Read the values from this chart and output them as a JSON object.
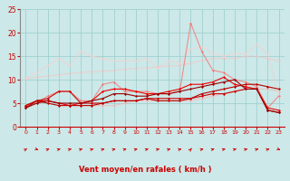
{
  "background_color": "#cce8e8",
  "grid_color": "#99cccc",
  "xlabel": "Vent moyen/en rafales ( km/h )",
  "xlabel_color": "#cc0000",
  "tick_color": "#cc0000",
  "xlim": [
    -0.5,
    23.5
  ],
  "ylim": [
    0,
    25
  ],
  "yticks": [
    0,
    5,
    10,
    15,
    20,
    25
  ],
  "xticks": [
    0,
    1,
    2,
    3,
    4,
    5,
    6,
    7,
    8,
    9,
    10,
    11,
    12,
    13,
    14,
    15,
    16,
    17,
    18,
    19,
    20,
    21,
    22,
    23
  ],
  "series": [
    {
      "x": [
        0,
        1,
        2,
        3,
        4,
        5,
        6,
        7,
        8,
        9,
        10,
        11,
        12,
        13,
        14,
        15,
        16,
        17,
        18,
        19,
        20,
        21,
        22,
        23
      ],
      "y": [
        4.0,
        5.5,
        5.5,
        5.0,
        4.5,
        4.5,
        4.5,
        4.5,
        4.5,
        5.0,
        5.5,
        5.5,
        5.5,
        5.5,
        5.5,
        5.5,
        6.0,
        6.5,
        7.0,
        7.5,
        8.0,
        8.0,
        8.0,
        7.5
      ],
      "color": "#ffaaaa",
      "alpha": 0.6,
      "lw": 0.8,
      "marker": "D",
      "ms": 1.5
    },
    {
      "x": [
        0,
        1,
        2,
        3,
        4,
        5,
        6,
        7,
        8,
        9,
        10,
        11,
        12,
        13,
        14,
        15,
        16,
        17,
        18,
        19,
        20,
        21,
        22,
        23
      ],
      "y": [
        10.2,
        10.5,
        10.8,
        11.0,
        11.3,
        11.5,
        11.7,
        11.8,
        12.0,
        12.2,
        12.4,
        12.5,
        12.7,
        12.9,
        13.0,
        13.5,
        14.0,
        14.5,
        14.5,
        14.5,
        15.0,
        15.0,
        14.5,
        14.0
      ],
      "color": "#ffbbbb",
      "alpha": 0.5,
      "lw": 0.8,
      "marker": "D",
      "ms": 1.5
    },
    {
      "x": [
        0,
        1,
        2,
        3,
        4,
        5,
        6,
        7,
        8,
        9,
        10,
        11,
        12,
        13,
        14,
        15,
        16,
        17,
        18,
        19,
        20,
        21,
        22,
        23
      ],
      "y": [
        10.2,
        11.5,
        13.0,
        14.5,
        13.0,
        16.0,
        15.0,
        14.5,
        14.0,
        14.0,
        14.0,
        14.5,
        12.5,
        14.0,
        13.5,
        16.5,
        17.0,
        15.5,
        15.0,
        15.5,
        15.5,
        17.5,
        15.5,
        6.5
      ],
      "color": "#ffcccc",
      "alpha": 0.6,
      "lw": 0.8,
      "marker": "D",
      "ms": 1.5
    },
    {
      "x": [
        0,
        1,
        2,
        3,
        4,
        5,
        6,
        7,
        8,
        9,
        10,
        11,
        12,
        13,
        14,
        15,
        16,
        17,
        18,
        19,
        20,
        21,
        22,
        23
      ],
      "y": [
        4.5,
        5.0,
        6.5,
        7.5,
        7.5,
        5.5,
        5.5,
        9.0,
        9.5,
        7.5,
        7.5,
        7.5,
        7.0,
        7.0,
        7.5,
        22.0,
        16.0,
        12.0,
        11.5,
        10.0,
        9.5,
        8.5,
        4.0,
        6.5
      ],
      "color": "#ff6666",
      "alpha": 0.7,
      "lw": 0.8,
      "marker": "D",
      "ms": 1.5
    },
    {
      "x": [
        0,
        1,
        2,
        3,
        4,
        5,
        6,
        7,
        8,
        9,
        10,
        11,
        12,
        13,
        14,
        15,
        16,
        17,
        18,
        19,
        20,
        21,
        22,
        23
      ],
      "y": [
        4.5,
        5.5,
        5.5,
        5.0,
        4.5,
        5.0,
        5.5,
        7.5,
        8.0,
        8.0,
        7.5,
        7.0,
        7.0,
        7.5,
        8.0,
        9.0,
        9.0,
        9.5,
        10.5,
        9.0,
        8.5,
        8.0,
        4.0,
        3.5
      ],
      "color": "#ee0000",
      "alpha": 1.0,
      "lw": 0.8,
      "marker": "D",
      "ms": 1.5
    },
    {
      "x": [
        0,
        1,
        2,
        3,
        4,
        5,
        6,
        7,
        8,
        9,
        10,
        11,
        12,
        13,
        14,
        15,
        16,
        17,
        18,
        19,
        20,
        21,
        22,
        23
      ],
      "y": [
        4.5,
        5.5,
        6.0,
        7.5,
        7.5,
        5.0,
        5.0,
        5.0,
        5.5,
        5.5,
        5.5,
        6.0,
        6.0,
        6.0,
        6.0,
        6.0,
        6.5,
        7.0,
        7.0,
        7.5,
        8.0,
        8.0,
        3.5,
        3.0
      ],
      "color": "#cc0000",
      "alpha": 1.0,
      "lw": 0.8,
      "marker": "D",
      "ms": 1.5
    },
    {
      "x": [
        0,
        1,
        2,
        3,
        4,
        5,
        6,
        7,
        8,
        9,
        10,
        11,
        12,
        13,
        14,
        15,
        16,
        17,
        18,
        19,
        20,
        21,
        22,
        23
      ],
      "y": [
        4.0,
        5.5,
        5.0,
        4.5,
        4.5,
        4.5,
        4.5,
        5.0,
        5.5,
        5.5,
        5.5,
        6.0,
        5.5,
        5.5,
        5.5,
        6.0,
        7.0,
        7.5,
        8.0,
        8.5,
        9.0,
        9.0,
        8.5,
        8.0
      ],
      "color": "#bb0000",
      "alpha": 1.0,
      "lw": 0.8,
      "marker": "D",
      "ms": 1.5
    },
    {
      "x": [
        0,
        1,
        2,
        3,
        4,
        5,
        6,
        7,
        8,
        9,
        10,
        11,
        12,
        13,
        14,
        15,
        16,
        17,
        18,
        19,
        20,
        21,
        22,
        23
      ],
      "y": [
        4.0,
        5.0,
        5.5,
        5.0,
        5.0,
        5.0,
        5.5,
        6.0,
        7.0,
        7.0,
        6.5,
        6.5,
        7.0,
        7.0,
        7.5,
        8.0,
        8.5,
        9.0,
        9.5,
        10.0,
        8.0,
        8.0,
        3.5,
        3.0
      ],
      "color": "#990000",
      "alpha": 1.0,
      "lw": 0.8,
      "marker": "D",
      "ms": 1.5
    }
  ],
  "arrow_color": "#cc0000",
  "arrow_angles": [
    45,
    -30,
    30,
    20,
    20,
    20,
    20,
    20,
    20,
    20,
    20,
    20,
    20,
    20,
    20,
    60,
    20,
    20,
    20,
    20,
    20,
    20,
    20,
    -30
  ]
}
